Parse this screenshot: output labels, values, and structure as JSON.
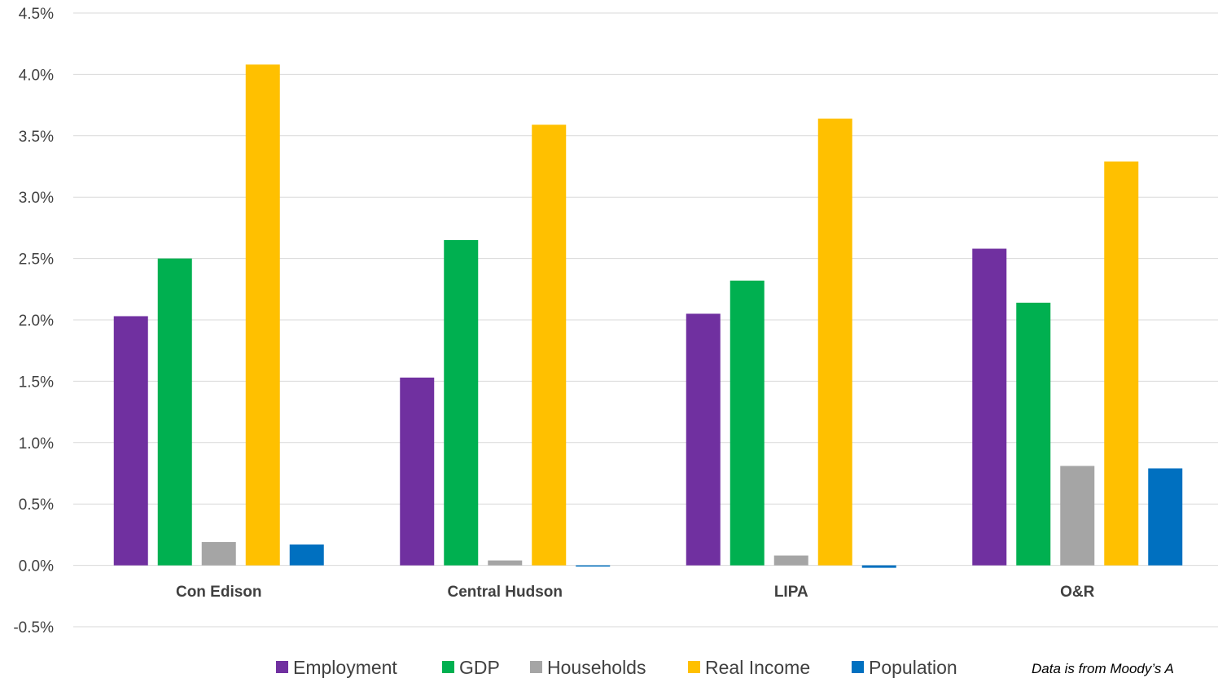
{
  "chart_data": {
    "type": "bar",
    "categories": [
      "Con Edison",
      "Central Hudson",
      "LIPA",
      "O&R"
    ],
    "series": [
      {
        "name": "Employment",
        "color": "#7030A0",
        "values": [
          2.03,
          1.53,
          2.05,
          2.58
        ]
      },
      {
        "name": "GDP",
        "color": "#00B050",
        "values": [
          2.5,
          2.65,
          2.32,
          2.14
        ]
      },
      {
        "name": "Households",
        "color": "#A5A5A5",
        "values": [
          0.19,
          0.04,
          0.08,
          0.81
        ]
      },
      {
        "name": "Real Income",
        "color": "#FFC000",
        "values": [
          4.08,
          3.59,
          3.64,
          3.29
        ]
      },
      {
        "name": "Population",
        "color": "#0070C0",
        "values": [
          0.17,
          -0.01,
          -0.02,
          0.79
        ]
      }
    ],
    "y_ticks": [
      "4.5%",
      "4.0%",
      "3.5%",
      "3.0%",
      "2.5%",
      "2.0%",
      "1.5%",
      "1.0%",
      "0.5%",
      "0.0%",
      "-0.5%"
    ],
    "ylim": [
      -0.5,
      4.5
    ],
    "y_unit": "%",
    "grid": true,
    "legend_position": "bottom",
    "note": "Data is from Moody’s A"
  }
}
